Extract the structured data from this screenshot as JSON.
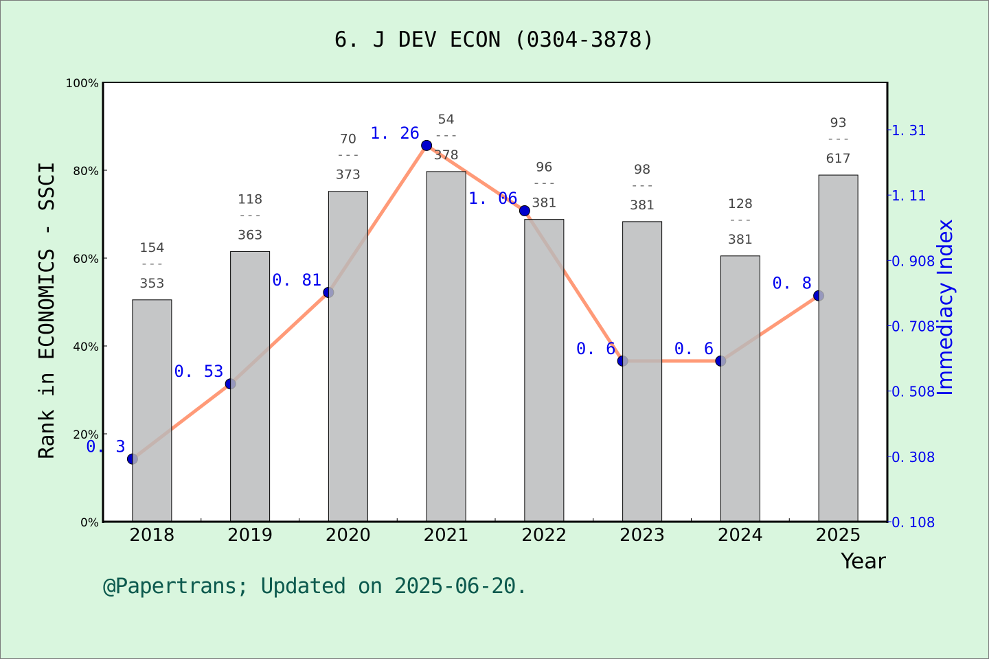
{
  "chart_data": {
    "type": "bar+line",
    "title": "6. J DEV ECON (0304-3878)",
    "xlabel": "Year",
    "ylabel": "Rank in ECONOMICS - SSCI",
    "y2label": "Immediacy Index",
    "categories": [
      "2018",
      "2019",
      "2020",
      "2021",
      "2022",
      "2023",
      "2024",
      "2025"
    ],
    "ylim": [
      0,
      100
    ],
    "yticks": [
      "0%",
      "20%",
      "40%",
      "60%",
      "80%",
      "100%"
    ],
    "y2lim": [
      0.108,
      1.453
    ],
    "y2ticks": [
      "0. 108",
      "0. 308",
      "0. 508",
      "0. 708",
      "0. 908",
      "1. 11",
      "1. 31"
    ],
    "bars": {
      "values": [
        50.5,
        61.5,
        75.2,
        79.7,
        68.8,
        68.3,
        60.5,
        78.9
      ],
      "rank_labels": [
        {
          "rank": "154",
          "total": "353"
        },
        {
          "rank": "118",
          "total": "363"
        },
        {
          "rank": "70",
          "total": "373"
        },
        {
          "rank": "54",
          "total": "378"
        },
        {
          "rank": "96",
          "total": "381"
        },
        {
          "rank": "98",
          "total": "381"
        },
        {
          "rank": "128",
          "total": "381"
        },
        {
          "rank": "93",
          "total": "617"
        }
      ],
      "color": "#b8b9bb"
    },
    "line": {
      "values": [
        0.3,
        0.53,
        0.81,
        1.26,
        1.06,
        0.6,
        0.6,
        0.8
      ],
      "labels": [
        "0. 3",
        "0. 53",
        "0. 81",
        "1. 26",
        "1. 06",
        "0. 6",
        "0. 6",
        "0. 8"
      ],
      "color": "#ff9a78",
      "marker_color": "#0000cc"
    },
    "grid": false
  },
  "footer": "@Papertrans; Updated on 2025-06-20."
}
